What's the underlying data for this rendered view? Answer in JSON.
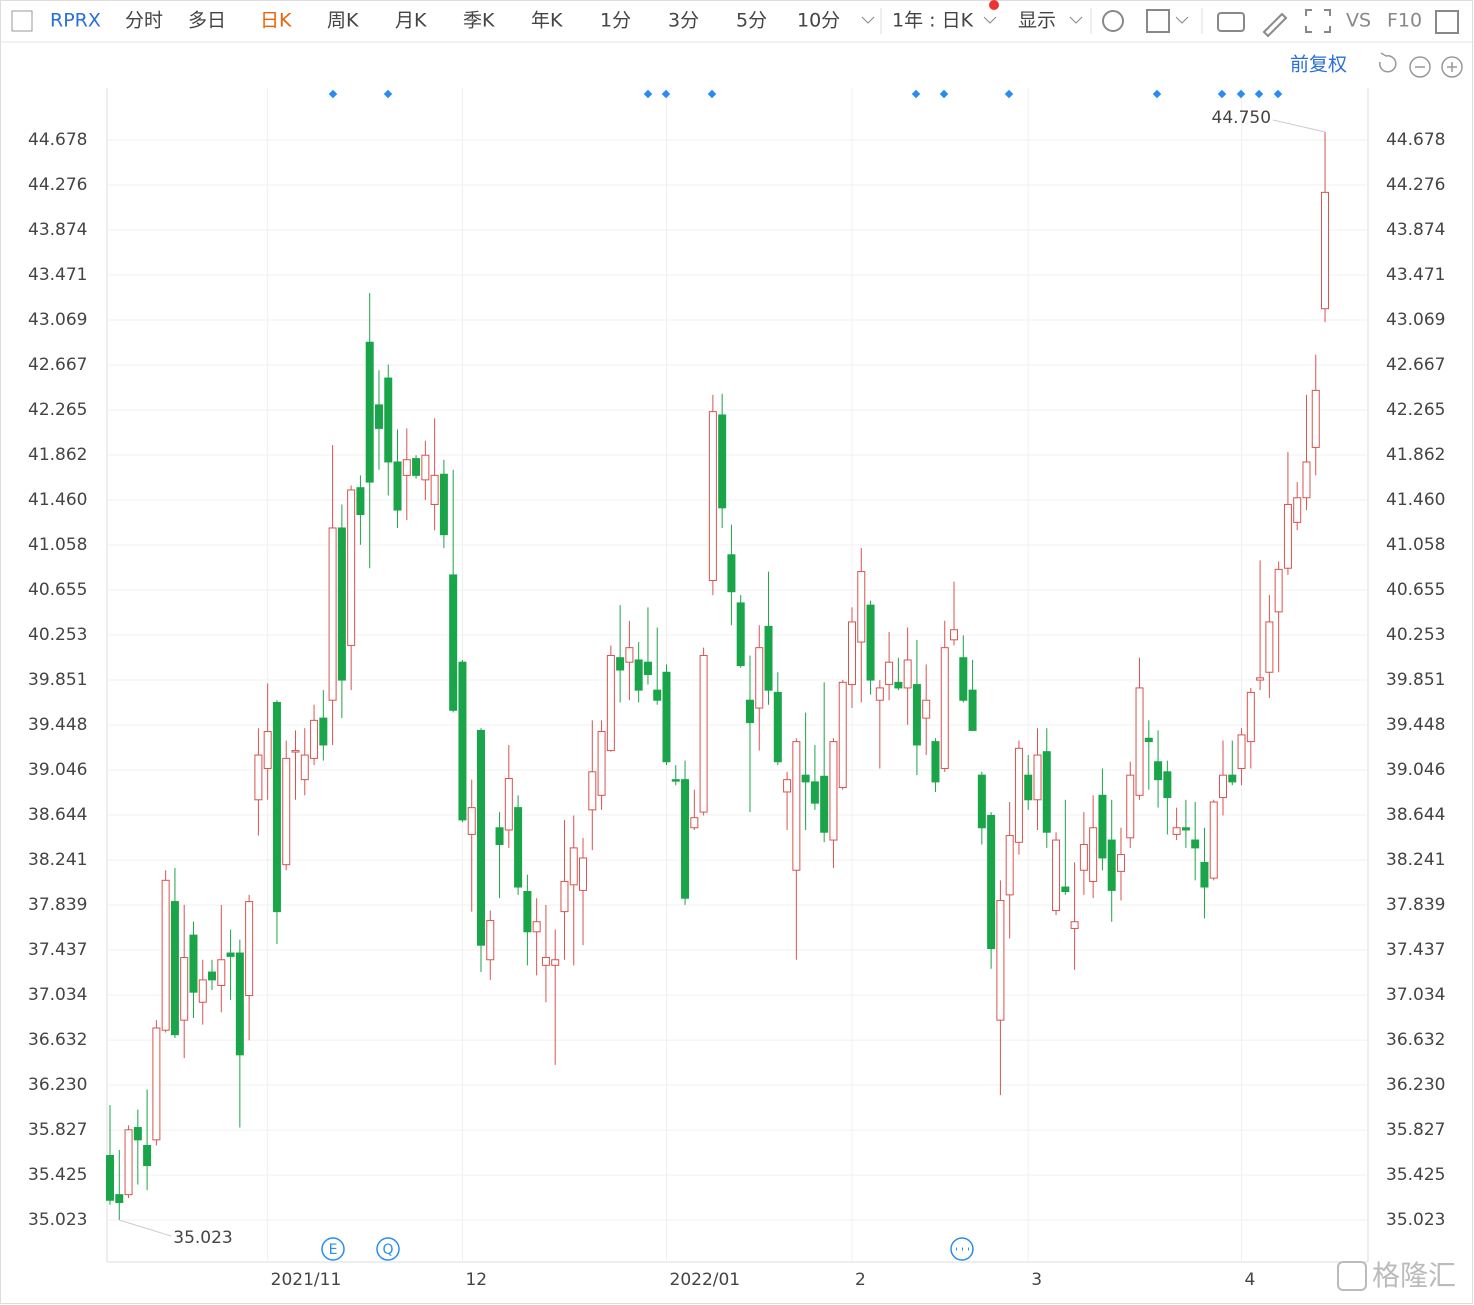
{
  "toolbar": {
    "symbol": "RPRX",
    "tabs": [
      "分时",
      "多日",
      "日K",
      "周K",
      "月K",
      "季K",
      "年K",
      "1分",
      "3分",
      "5分",
      "10分"
    ],
    "active_tab": "日K",
    "period_select": "1年 : 日K",
    "display": "显示",
    "vs": "VS",
    "f10": "F10"
  },
  "adjust": "前复权",
  "watermark": "格隆汇",
  "event_icons": [
    "E",
    "Q"
  ],
  "chart_data": {
    "type": "candlestick",
    "categories": [
      null,
      null,
      null,
      null,
      null,
      null,
      null,
      null,
      null,
      null,
      null,
      null,
      null,
      null,
      null,
      null,
      null,
      "2021/11",
      null,
      null,
      null,
      null,
      null,
      null,
      null,
      null,
      null,
      null,
      null,
      null,
      null,
      null,
      null,
      null,
      null,
      null,
      null,
      null,
      "12",
      null,
      null,
      null,
      null,
      null,
      null,
      null,
      null,
      null,
      null,
      null,
      null,
      null,
      null,
      null,
      null,
      null,
      null,
      null,
      null,
      null,
      "2022/01",
      null,
      null,
      null,
      null,
      null,
      null,
      null,
      null,
      null,
      null,
      null,
      null,
      null,
      null,
      null,
      null,
      null,
      null,
      null,
      "2",
      null,
      null,
      null,
      null,
      null,
      null,
      null,
      null,
      null,
      null,
      null,
      null,
      null,
      null,
      null,
      null,
      null,
      null,
      "3",
      null,
      null,
      null,
      null,
      null,
      null,
      null,
      null,
      null,
      null,
      null,
      null,
      null,
      null,
      null,
      null,
      null,
      null,
      null,
      null,
      null,
      null,
      "4",
      null,
      null,
      null,
      null,
      null,
      null,
      null,
      null,
      null
    ],
    "open": [
      35.6,
      35.25,
      35.25,
      35.85,
      35.69,
      35.74,
      36.72,
      37.87,
      36.81,
      37.57,
      36.97,
      37.24,
      37.12,
      37.41,
      37.41,
      37.03,
      38.78,
      39.06,
      39.65,
      38.2,
      39.21,
      38.96,
      39.15,
      39.51,
      39.67,
      41.21,
      40.16,
      41.57,
      42.87,
      42.31,
      42.55,
      41.8,
      41.68,
      41.83,
      41.64,
      41.42,
      41.69,
      40.79,
      40.01,
      38.47,
      39.4,
      37.35,
      38.53,
      38.51,
      38.71,
      37.96,
      37.6,
      37.3,
      37.3,
      37.78,
      38.02,
      37.97,
      38.69,
      38.82,
      39.22,
      40.05,
      40.01,
      40.03,
      40.01,
      39.76,
      39.92,
      38.96,
      38.96,
      38.53,
      38.67,
      40.74,
      42.22,
      40.97,
      40.54,
      39.67,
      39.6,
      40.33,
      39.74,
      38.85,
      38.15,
      39.0,
      38.94,
      38.99,
      38.42,
      38.89,
      39.81,
      40.19,
      40.52,
      39.67,
      39.81,
      39.83,
      39.78,
      39.81,
      39.51,
      39.3,
      39.06,
      40.21,
      40.05,
      39.76,
      39.0,
      38.64,
      36.81,
      37.93,
      38.4,
      39.0,
      38.78,
      39.21,
      37.79,
      38.0,
      37.63,
      38.15,
      38.05,
      38.82,
      38.42,
      38.14,
      38.44,
      38.82,
      39.33,
      39.12,
      39.03,
      38.47,
      38.53,
      38.42,
      38.22,
      38.08,
      38.8,
      39.0,
      39.06,
      39.3,
      39.85,
      39.92,
      40.46,
      40.85,
      41.26,
      41.48,
      41.93,
      43.17
    ],
    "high": [
      36.05,
      35.65,
      35.87,
      36.01,
      36.19,
      36.81,
      38.15,
      38.17,
      37.84,
      37.69,
      37.35,
      37.35,
      37.84,
      37.62,
      37.53,
      37.93,
      39.42,
      39.82,
      39.67,
      39.31,
      39.4,
      39.42,
      39.63,
      39.76,
      41.95,
      41.42,
      41.59,
      41.68,
      43.31,
      42.62,
      42.67,
      42.09,
      42.1,
      41.86,
      41.99,
      42.19,
      41.82,
      41.73,
      40.03,
      38.96,
      39.42,
      37.79,
      38.67,
      39.27,
      38.82,
      38.11,
      37.9,
      37.84,
      37.62,
      38.6,
      38.64,
      38.44,
      39.49,
      39.49,
      40.16,
      40.52,
      40.38,
      40.19,
      40.5,
      40.32,
      39.99,
      39.09,
      39.13,
      38.87,
      40.14,
      42.4,
      42.41,
      41.24,
      40.61,
      40.07,
      40.34,
      40.82,
      39.92,
      39.03,
      39.33,
      39.56,
      39.27,
      39.83,
      39.33,
      39.85,
      40.5,
      41.03,
      40.56,
      39.85,
      40.28,
      40.05,
      40.32,
      40.21,
      39.99,
      39.33,
      40.38,
      40.73,
      40.25,
      40.03,
      39.03,
      38.67,
      38.06,
      38.76,
      39.31,
      39.18,
      39.42,
      39.42,
      38.49,
      38.78,
      38.22,
      38.67,
      38.82,
      39.06,
      38.78,
      38.53,
      39.12,
      40.05,
      39.49,
      39.4,
      39.13,
      38.71,
      38.78,
      38.76,
      38.53,
      38.78,
      39.31,
      39.31,
      39.42,
      39.78,
      40.92,
      40.61,
      40.91,
      41.89,
      41.62,
      42.4,
      42.76,
      44.75
    ],
    "low": [
      35.16,
      35.023,
      35.22,
      35.34,
      35.29,
      35.69,
      36.7,
      36.65,
      36.47,
      36.83,
      36.77,
      37.08,
      36.88,
      36.99,
      35.85,
      36.63,
      38.46,
      38.78,
      37.49,
      38.15,
      38.78,
      38.82,
      39.09,
      39.13,
      39.27,
      39.51,
      39.76,
      41.06,
      40.85,
      41.73,
      41.5,
      41.21,
      41.28,
      41.65,
      41.46,
      41.19,
      41.03,
      39.56,
      38.58,
      37.78,
      37.24,
      37.17,
      37.9,
      38.35,
      37.93,
      37.3,
      37.21,
      36.97,
      36.41,
      37.35,
      37.3,
      37.48,
      38.33,
      38.69,
      39.21,
      39.65,
      39.67,
      39.65,
      39.81,
      39.63,
      39.09,
      38.91,
      37.84,
      38.51,
      38.64,
      40.61,
      41.21,
      40.34,
      39.96,
      38.67,
      39.22,
      39.63,
      39.09,
      38.51,
      37.35,
      38.51,
      38.69,
      38.4,
      38.17,
      38.87,
      39.6,
      39.65,
      39.72,
      39.06,
      39.67,
      39.76,
      39.45,
      39.0,
      39.18,
      38.85,
      39.03,
      40.16,
      39.65,
      39.4,
      38.38,
      37.27,
      36.14,
      37.54,
      38.29,
      38.69,
      38.51,
      38.35,
      37.75,
      37.93,
      37.26,
      37.93,
      37.9,
      38.15,
      37.69,
      37.88,
      38.35,
      38.78,
      38.87,
      38.71,
      38.47,
      38.42,
      38.35,
      38.06,
      37.72,
      38.06,
      38.64,
      38.91,
      38.91,
      39.06,
      39.76,
      39.69,
      39.92,
      40.79,
      41.19,
      41.37,
      41.68,
      43.05
    ],
    "close": [
      35.2,
      35.18,
      35.83,
      35.74,
      35.51,
      36.74,
      38.06,
      36.68,
      37.37,
      37.06,
      37.17,
      37.17,
      37.35,
      37.38,
      36.5,
      37.87,
      39.18,
      39.39,
      37.78,
      39.15,
      39.22,
      39.18,
      39.49,
      39.27,
      41.21,
      39.85,
      41.55,
      41.33,
      41.62,
      42.1,
      41.8,
      41.37,
      41.82,
      41.68,
      41.86,
      41.68,
      41.15,
      39.58,
      38.6,
      38.71,
      37.48,
      37.7,
      38.38,
      38.97,
      38.0,
      37.6,
      37.69,
      37.37,
      37.35,
      38.05,
      38.35,
      38.26,
      39.03,
      39.39,
      40.07,
      39.94,
      40.14,
      39.76,
      39.9,
      39.67,
      39.12,
      38.95,
      37.9,
      38.62,
      40.07,
      42.25,
      41.39,
      40.64,
      39.98,
      39.47,
      40.14,
      39.76,
      39.12,
      38.96,
      39.3,
      38.94,
      38.75,
      38.49,
      39.3,
      39.83,
      40.37,
      40.82,
      39.85,
      39.78,
      40.01,
      39.78,
      40.03,
      39.27,
      39.67,
      38.94,
      40.14,
      40.3,
      39.67,
      39.4,
      38.53,
      37.45,
      37.88,
      38.46,
      39.24,
      38.78,
      39.18,
      38.49,
      38.42,
      37.96,
      37.69,
      38.38,
      38.53,
      38.26,
      37.97,
      38.29,
      39.0,
      39.78,
      39.3,
      38.96,
      38.8,
      38.53,
      38.51,
      38.35,
      38.0,
      38.76,
      39.0,
      38.94,
      39.36,
      39.74,
      39.87,
      40.37,
      40.84,
      41.42,
      41.48,
      41.8,
      42.44,
      44.21
    ],
    "up_color": "#d9534f",
    "down_color": "#1aa54a",
    "ylim": [
      34.648,
      45.143
    ],
    "yticks": [
      35.023,
      35.425,
      35.827,
      {
        "value": 36.23,
        "label": "36.230"
      },
      36.632,
      37.034,
      37.437,
      37.839,
      38.241,
      38.644,
      39.046,
      39.448,
      39.851,
      40.253,
      40.655,
      41.058,
      {
        "value": 41.46,
        "label": "41.460"
      },
      41.862,
      42.265,
      42.667,
      43.069,
      43.471,
      43.874,
      44.276,
      44.678
    ],
    "grid": true,
    "annotations": [
      {
        "value": 44.75,
        "label": "44.750"
      },
      {
        "value": 35.023,
        "label": "35.023"
      }
    ]
  }
}
